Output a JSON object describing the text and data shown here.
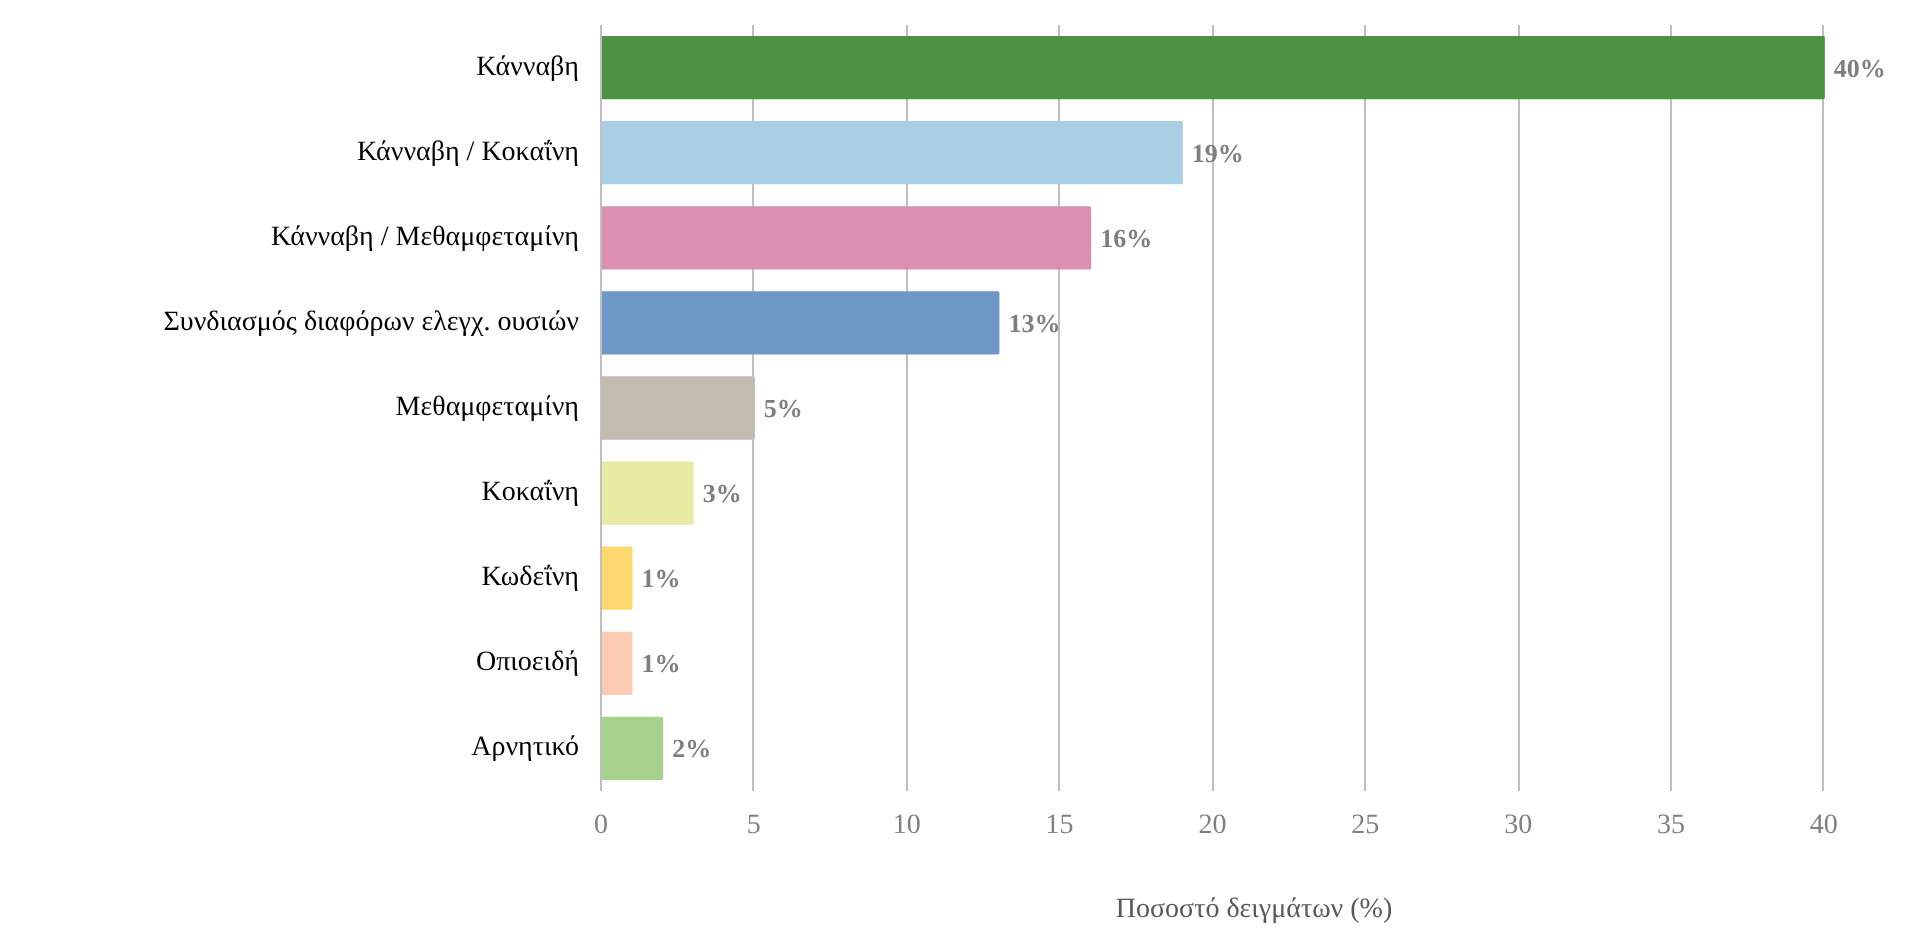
{
  "chart_data": {
    "type": "bar",
    "orientation": "horizontal",
    "xlabel": "Ποσοστό δειγμάτων (%)",
    "categories": [
      "Κάνναβη",
      "Κάνναβη / Κοκαΐνη",
      "Κάνναβη / Μεθαμφεταμίνη",
      "Συνδιασμός διαφόρων ελεγχ. ουσιών",
      "Μεθαμφεταμίνη",
      "Κοκαΐνη",
      "Κωδεΐνη",
      "Οπιοειδή",
      "Αρνητικό"
    ],
    "values": [
      40,
      19,
      16,
      13,
      5,
      3,
      1,
      1,
      2
    ],
    "value_labels": [
      "40%",
      "19%",
      "16%",
      "13%",
      "5%",
      "3%",
      "1%",
      "1%",
      "2%"
    ],
    "colors": [
      "#4e9244",
      "#a8cfe3",
      "#db8fb3",
      "#6f98c6",
      "#c3bbae",
      "#e8eaa1",
      "#fdd86e",
      "#fccbb4",
      "#a9d18e"
    ],
    "xlim": [
      0,
      40
    ],
    "xticks": [
      0,
      5,
      10,
      15,
      20,
      25,
      30,
      35,
      40
    ],
    "grid": "x"
  }
}
